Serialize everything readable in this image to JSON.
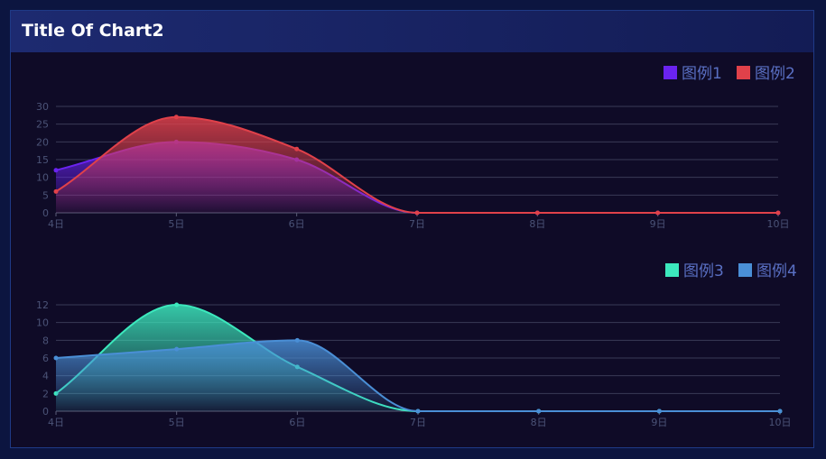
{
  "panel": {
    "title": "Title Of Chart2"
  },
  "chart_data": [
    {
      "type": "area",
      "categories": [
        "4日",
        "5日",
        "6日",
        "7日",
        "8日",
        "9日",
        "10日"
      ],
      "ylim": [
        0,
        30
      ],
      "yticks": [
        0,
        5,
        10,
        15,
        20,
        25,
        30
      ],
      "legend_position": "top-right",
      "grid": true,
      "series": [
        {
          "name": "图例1",
          "color": "#6a23f0",
          "values": [
            12,
            20,
            15,
            0,
            0,
            0,
            0
          ]
        },
        {
          "name": "图例2",
          "color": "#e0414a",
          "values": [
            6,
            27,
            18,
            0,
            0,
            0,
            0
          ]
        }
      ]
    },
    {
      "type": "area",
      "categories": [
        "4日",
        "5日",
        "6日",
        "7日",
        "8日",
        "9日",
        "10日"
      ],
      "ylim": [
        0,
        12
      ],
      "yticks": [
        0,
        2,
        4,
        6,
        8,
        10,
        12
      ],
      "legend_position": "top-right",
      "grid": true,
      "series": [
        {
          "name": "图例3",
          "color": "#3ce9bd",
          "values": [
            2,
            12,
            5,
            0,
            0,
            0,
            0
          ]
        },
        {
          "name": "图例4",
          "color": "#4a8fd6",
          "values": [
            6,
            7,
            8,
            0,
            0,
            0,
            0
          ]
        }
      ]
    }
  ]
}
